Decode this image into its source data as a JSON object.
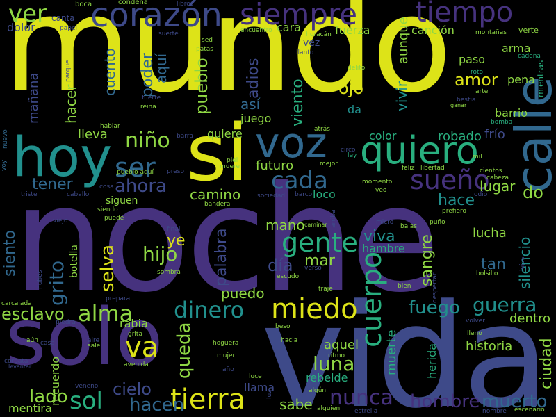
{
  "palette": {
    "background": "#000000",
    "yellow": "#dde318",
    "lime": "#8fd744",
    "green": "#29af7f",
    "teal": "#21908d",
    "blue": "#31688e",
    "indigo": "#3e4a89",
    "purple": "#46327e",
    "darkpurple": "#440154"
  },
  "words": [
    {
      "text": "mundo",
      "color": "yellow"
    },
    {
      "text": "noche",
      "color": "purple"
    },
    {
      "text": "vida",
      "color": "indigo"
    },
    {
      "text": "solo",
      "color": "purple"
    },
    {
      "text": "si",
      "color": "yellow"
    },
    {
      "text": "calle",
      "color": "blue"
    },
    {
      "text": "hoy",
      "color": "teal"
    },
    {
      "text": "voz",
      "color": "blue"
    },
    {
      "text": "quiero",
      "color": "green"
    },
    {
      "text": "corazón",
      "color": "indigo"
    },
    {
      "text": "siempre",
      "color": "purple"
    },
    {
      "text": "tiempo",
      "color": "purple"
    },
    {
      "text": "ver",
      "color": "lime"
    },
    {
      "text": "miedo",
      "color": "yellow"
    },
    {
      "text": "tierra",
      "color": "yellow"
    },
    {
      "text": "cuerpo",
      "color": "green"
    },
    {
      "text": "gente",
      "color": "green"
    },
    {
      "text": "sueño",
      "color": "purple"
    },
    {
      "text": "cada",
      "color": "blue"
    },
    {
      "text": "ser",
      "color": "blue"
    },
    {
      "text": "ahora",
      "color": "indigo"
    },
    {
      "text": "niño",
      "color": "lime"
    },
    {
      "text": "nunca",
      "color": "purple"
    },
    {
      "text": "dinero",
      "color": "teal"
    },
    {
      "text": "alma",
      "color": "lime"
    },
    {
      "text": "esclavo",
      "color": "lime"
    },
    {
      "text": "sol",
      "color": "green"
    },
    {
      "text": "va",
      "color": "yellow"
    },
    {
      "text": "hacen",
      "color": "blue"
    },
    {
      "text": "lado",
      "color": "lime"
    },
    {
      "text": "cielo",
      "color": "indigo"
    },
    {
      "text": "hombre",
      "color": "purple"
    },
    {
      "text": "muerto",
      "color": "blue"
    },
    {
      "text": "guerra",
      "color": "teal"
    },
    {
      "text": "fuego",
      "color": "teal"
    },
    {
      "text": "luna",
      "color": "lime"
    },
    {
      "text": "queda",
      "color": "lime"
    },
    {
      "text": "grito",
      "color": "blue"
    },
    {
      "text": "selva",
      "color": "yellow"
    },
    {
      "text": "hijo",
      "color": "lime"
    },
    {
      "text": "ye",
      "color": "yellow"
    },
    {
      "text": "día",
      "color": "indigo"
    },
    {
      "text": "mar",
      "color": "lime"
    },
    {
      "text": "mano",
      "color": "lime"
    },
    {
      "text": "palabra",
      "color": "indigo"
    },
    {
      "text": "puedo",
      "color": "lime"
    },
    {
      "text": "sangre",
      "color": "lime"
    },
    {
      "text": "viva",
      "color": "teal"
    },
    {
      "text": "hambre",
      "color": "green"
    },
    {
      "text": "tan",
      "color": "blue"
    },
    {
      "text": "lucha",
      "color": "lime"
    },
    {
      "text": "silencio",
      "color": "teal"
    },
    {
      "text": "ciudad",
      "color": "lime"
    },
    {
      "text": "dentro",
      "color": "lime"
    },
    {
      "text": "historia",
      "color": "lime"
    },
    {
      "text": "herida",
      "color": "green"
    },
    {
      "text": "muerte",
      "color": "green"
    },
    {
      "text": "aquel",
      "color": "lime"
    },
    {
      "text": "rebelde",
      "color": "green"
    },
    {
      "text": "llama",
      "color": "indigo"
    },
    {
      "text": "sabe",
      "color": "lime"
    },
    {
      "text": "mentira",
      "color": "lime"
    },
    {
      "text": "recuerdo",
      "color": "lime"
    },
    {
      "text": "rabia",
      "color": "lime"
    },
    {
      "text": "siento",
      "color": "blue"
    },
    {
      "text": "tener",
      "color": "blue"
    },
    {
      "text": "camino",
      "color": "lime"
    },
    {
      "text": "hacer",
      "color": "lime"
    },
    {
      "text": "lleva",
      "color": "lime"
    },
    {
      "text": "mañana",
      "color": "indigo"
    },
    {
      "text": "cuento",
      "color": "blue"
    },
    {
      "text": "poder",
      "color": "blue"
    },
    {
      "text": "aquí",
      "color": "blue"
    },
    {
      "text": "pueblo",
      "color": "lime"
    },
    {
      "text": "quiere",
      "color": "lime"
    },
    {
      "text": "así",
      "color": "blue"
    },
    {
      "text": "adios",
      "color": "indigo"
    },
    {
      "text": "juego",
      "color": "lime"
    },
    {
      "text": "futuro",
      "color": "lime"
    },
    {
      "text": "viento",
      "color": "green"
    },
    {
      "text": "vivir",
      "color": "teal"
    },
    {
      "text": "ojo",
      "color": "yellow"
    },
    {
      "text": "amor",
      "color": "yellow"
    },
    {
      "text": "da",
      "color": "teal"
    },
    {
      "text": "color",
      "color": "green"
    },
    {
      "text": "robado",
      "color": "green"
    },
    {
      "text": "frío",
      "color": "indigo"
    },
    {
      "text": "barrio",
      "color": "lime"
    },
    {
      "text": "pena",
      "color": "lime"
    },
    {
      "text": "paso",
      "color": "lime"
    },
    {
      "text": "arma",
      "color": "lime"
    },
    {
      "text": "lugar",
      "color": "lime"
    },
    {
      "text": "hace",
      "color": "teal"
    },
    {
      "text": "do",
      "color": "lime"
    },
    {
      "text": "loco",
      "color": "green"
    },
    {
      "text": "canción",
      "color": "lime"
    },
    {
      "text": "aunque",
      "color": "lime"
    },
    {
      "text": "cara",
      "color": "lime"
    },
    {
      "text": "fuerza",
      "color": "lime"
    },
    {
      "text": "vez",
      "color": "indigo"
    },
    {
      "text": "dolor",
      "color": "indigo"
    },
    {
      "text": "canta",
      "color": "indigo"
    },
    {
      "text": "siguen",
      "color": "lime"
    },
    {
      "text": "botella",
      "color": "lime"
    },
    {
      "text": "mientras",
      "color": "green"
    },
    {
      "text": "boca",
      "color": "lime"
    },
    {
      "text": "libros",
      "color": "indigo"
    },
    {
      "text": "condena",
      "color": "lime"
    },
    {
      "text": "verte",
      "color": "lime"
    },
    {
      "text": "montañas",
      "color": "lime"
    },
    {
      "text": "cadena",
      "color": "green"
    },
    {
      "text": "papel",
      "color": "indigo"
    },
    {
      "text": "suerte",
      "color": "indigo"
    },
    {
      "text": "sed",
      "color": "lime"
    },
    {
      "text": "encuentro",
      "color": "lime"
    },
    {
      "text": "huracán",
      "color": "lime"
    },
    {
      "text": "llanto",
      "color": "indigo"
    },
    {
      "text": "delito",
      "color": "lime"
    },
    {
      "text": "roto",
      "color": "green"
    },
    {
      "text": "arte",
      "color": "lime"
    },
    {
      "text": "bestia",
      "color": "indigo"
    },
    {
      "text": "ganar",
      "color": "lime"
    },
    {
      "text": "bomba",
      "color": "green"
    },
    {
      "text": "patas",
      "color": "lime"
    },
    {
      "text": "fuerte",
      "color": "indigo"
    },
    {
      "text": "reina",
      "color": "lime"
    },
    {
      "text": "parque",
      "color": "indigo"
    },
    {
      "text": "hablar",
      "color": "lime"
    },
    {
      "text": "barra",
      "color": "indigo"
    },
    {
      "text": "nuevo",
      "color": "blue"
    },
    {
      "text": "voy",
      "color": "blue"
    },
    {
      "text": "triste",
      "color": "indigo"
    },
    {
      "text": "caballo",
      "color": "indigo"
    },
    {
      "text": "cosa",
      "color": "indigo"
    },
    {
      "text": "preso",
      "color": "indigo"
    },
    {
      "text": "piel",
      "color": "lime"
    },
    {
      "text": "muere",
      "color": "lime"
    },
    {
      "text": "pueblo aquí",
      "color": "lime"
    },
    {
      "text": "atrás",
      "color": "lime"
    },
    {
      "text": "mejor",
      "color": "lime"
    },
    {
      "text": "circo",
      "color": "indigo"
    },
    {
      "text": "ley",
      "color": "green"
    },
    {
      "text": "mil",
      "color": "lime"
    },
    {
      "text": "feliz",
      "color": "lime"
    },
    {
      "text": "libertad",
      "color": "lime"
    },
    {
      "text": "cientos",
      "color": "lime"
    },
    {
      "text": "cabeza",
      "color": "lime"
    },
    {
      "text": "odio",
      "color": "indigo"
    },
    {
      "text": "prefiero",
      "color": "lime"
    },
    {
      "text": "momento",
      "color": "lime"
    },
    {
      "text": "veo",
      "color": "lime"
    },
    {
      "text": "sociedad",
      "color": "indigo"
    },
    {
      "text": "barco",
      "color": "indigo"
    },
    {
      "text": "arriba",
      "color": "indigo"
    },
    {
      "text": "bandera",
      "color": "lime"
    },
    {
      "text": "siendo",
      "color": "lime"
    },
    {
      "text": "puede",
      "color": "lime"
    },
    {
      "text": "viejo",
      "color": "indigo"
    },
    {
      "text": "final",
      "color": "indigo"
    },
    {
      "text": "caminar",
      "color": "lime"
    },
    {
      "text": "micro",
      "color": "indigo"
    },
    {
      "text": "balas",
      "color": "lime"
    },
    {
      "text": "puño",
      "color": "lime"
    },
    {
      "text": "lejos",
      "color": "indigo"
    },
    {
      "text": "bolsillo",
      "color": "lime"
    },
    {
      "text": "despertar",
      "color": "indigo"
    },
    {
      "text": "bien",
      "color": "lime"
    },
    {
      "text": "traje",
      "color": "lime"
    },
    {
      "text": "verso",
      "color": "indigo"
    },
    {
      "text": "escudo",
      "color": "lime"
    },
    {
      "text": "sombra",
      "color": "lime"
    },
    {
      "text": "nubes",
      "color": "indigo"
    },
    {
      "text": "prepara",
      "color": "indigo"
    },
    {
      "text": "carcajada",
      "color": "lime"
    },
    {
      "text": "piedra",
      "color": "indigo"
    },
    {
      "text": "grita",
      "color": "lime"
    },
    {
      "text": "beso",
      "color": "lime"
    },
    {
      "text": "volver",
      "color": "indigo"
    },
    {
      "text": "lleno",
      "color": "lime"
    },
    {
      "text": "aún",
      "color": "lime"
    },
    {
      "text": "casa",
      "color": "indigo"
    },
    {
      "text": "aire",
      "color": "indigo"
    },
    {
      "text": "sale",
      "color": "lime"
    },
    {
      "text": "hoguera",
      "color": "lime"
    },
    {
      "text": "hacia",
      "color": "lime"
    },
    {
      "text": "ritmo",
      "color": "lime"
    },
    {
      "text": "mujer",
      "color": "lime"
    },
    {
      "text": "corbata",
      "color": "indigo"
    },
    {
      "text": "levantar",
      "color": "indigo"
    },
    {
      "text": "avenida",
      "color": "lime"
    },
    {
      "text": "año",
      "color": "indigo"
    },
    {
      "text": "luce",
      "color": "lime"
    },
    {
      "text": "veneno",
      "color": "indigo"
    },
    {
      "text": "algún",
      "color": "lime"
    },
    {
      "text": "alguien",
      "color": "lime"
    },
    {
      "text": "luz",
      "color": "indigo"
    },
    {
      "text": "estrella",
      "color": "indigo"
    },
    {
      "text": "nombre",
      "color": "indigo"
    },
    {
      "text": "escenario",
      "color": "lime"
    }
  ]
}
